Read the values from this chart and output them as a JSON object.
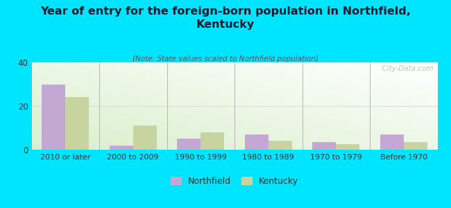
{
  "title": "Year of entry for the foreign-born population in Northfield,\nKentucky",
  "subtitle": "(Note: State values scaled to Northfield population)",
  "categories": [
    "2010 or later",
    "2000 to 2009",
    "1990 to 1999",
    "1980 to 1989",
    "1970 to 1979",
    "Before 1970"
  ],
  "northfield_values": [
    30,
    2,
    5,
    7,
    3.5,
    7
  ],
  "kentucky_values": [
    24,
    11,
    8,
    4,
    2.5,
    3.5
  ],
  "northfield_color": "#c4a8d4",
  "kentucky_color": "#c8d4a0",
  "background_color": "#00e5ff",
  "ylim": [
    0,
    40
  ],
  "yticks": [
    0,
    20,
    40
  ],
  "bar_width": 0.35,
  "watermark": "  City-Data.com",
  "legend_northfield": "Northfield",
  "legend_kentucky": "Kentucky",
  "title_color": "#1a1a2e",
  "subtitle_color": "#555555"
}
